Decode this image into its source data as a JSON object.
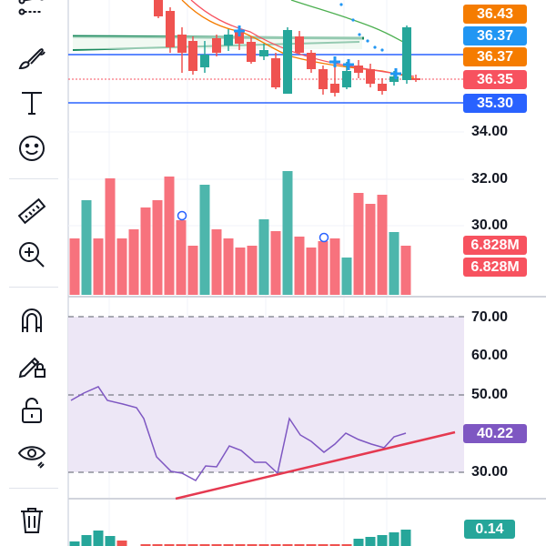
{
  "toolbar": {
    "tools": [
      {
        "name": "trend-line-tool-icon"
      },
      {
        "name": "brush-tool-icon"
      },
      {
        "name": "text-tool-icon"
      },
      {
        "name": "emoji-tool-icon"
      },
      {
        "name": "ruler-tool-icon"
      },
      {
        "name": "zoom-in-tool-icon"
      },
      {
        "name": "magnet-tool-icon"
      },
      {
        "name": "lock-drawing-tool-icon"
      },
      {
        "name": "unlock-tool-icon"
      },
      {
        "name": "visibility-tool-icon"
      },
      {
        "name": "delete-tool-icon"
      }
    ]
  },
  "price_labels": [
    {
      "text": "36.43",
      "color": "#f57c00"
    },
    {
      "text": "36.37",
      "color": "#2196f3"
    },
    {
      "text": "36.37",
      "color": "#f57c00"
    },
    {
      "text": "36.35",
      "color": "#f7525f"
    },
    {
      "text": "35.30",
      "color": "#2962ff"
    }
  ],
  "price_axis": [
    "34.00",
    "32.00",
    "30.00"
  ],
  "volume_labels": [
    {
      "text": "6.828M",
      "color": "#f7525f"
    },
    {
      "text": "6.828M",
      "color": "#f7525f"
    }
  ],
  "rsi_axis": [
    "70.00",
    "60.00",
    "50.00",
    "30.00"
  ],
  "rsi_label": {
    "text": "40.22",
    "color": "#7e57c2"
  },
  "macd_label": {
    "text": "0.14",
    "color": "#26a69a"
  },
  "colors": {
    "up": "#26a69a",
    "down": "#ef5350",
    "rsi_line": "#7e57c2",
    "rsi_band": "#ede7f6",
    "grid": "#f0f3fa"
  }
}
